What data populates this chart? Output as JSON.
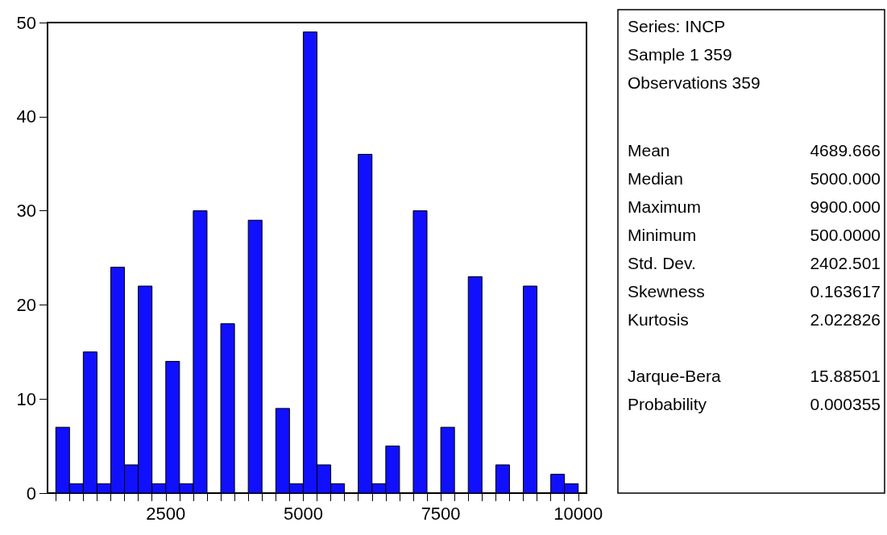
{
  "chart_data": {
    "type": "histogram",
    "bins": [
      500,
      750,
      1000,
      1250,
      1500,
      1750,
      2000,
      2250,
      2500,
      2750,
      3000,
      3250,
      3500,
      3750,
      4000,
      4250,
      4500,
      4750,
      5000,
      5250,
      5500,
      5750,
      6000,
      6250,
      6500,
      6750,
      7000,
      7250,
      7500,
      7750,
      8000,
      8250,
      8500,
      8750,
      9000,
      9250,
      9500,
      9750,
      10000
    ],
    "values": [
      7,
      1,
      15,
      1,
      24,
      3,
      22,
      1,
      14,
      1,
      30,
      0,
      18,
      0,
      29,
      0,
      9,
      1,
      49,
      3,
      1,
      0,
      36,
      1,
      5,
      0,
      30,
      0,
      7,
      0,
      23,
      0,
      3,
      0,
      22,
      0,
      2,
      1
    ],
    "color": "#1010ff",
    "xlim": [
      350,
      10150
    ],
    "xticks": [
      {
        "value": 500,
        "label": null
      },
      {
        "value": 750,
        "label": null
      },
      {
        "value": 1000,
        "label": null
      },
      {
        "value": 1250,
        "label": null
      },
      {
        "value": 1500,
        "label": null
      },
      {
        "value": 1750,
        "label": null
      },
      {
        "value": 2000,
        "label": null
      },
      {
        "value": 2250,
        "label": null
      },
      2500,
      {
        "value": 2750,
        "label": null
      },
      {
        "value": 3000,
        "label": null
      },
      {
        "value": 3250,
        "label": null
      },
      {
        "value": 3500,
        "label": null
      },
      {
        "value": 3750,
        "label": null
      },
      {
        "value": 4000,
        "label": null
      },
      {
        "value": 4250,
        "label": null
      },
      {
        "value": 4500,
        "label": null
      },
      {
        "value": 4750,
        "label": null
      },
      5000,
      {
        "value": 5250,
        "label": null
      },
      {
        "value": 5500,
        "label": null
      },
      {
        "value": 5750,
        "label": null
      },
      {
        "value": 6000,
        "label": null
      },
      {
        "value": 6250,
        "label": null
      },
      {
        "value": 6500,
        "label": null
      },
      {
        "value": 6750,
        "label": null
      },
      {
        "value": 7000,
        "label": null
      },
      {
        "value": 7250,
        "label": null
      },
      7500,
      {
        "value": 7750,
        "label": null
      },
      {
        "value": 8000,
        "label": null
      },
      {
        "value": 8250,
        "label": null
      },
      {
        "value": 8500,
        "label": null
      },
      {
        "value": 8750,
        "label": null
      },
      {
        "value": 9000,
        "label": null
      },
      {
        "value": 9250,
        "label": null
      },
      {
        "value": 9500,
        "label": null
      },
      {
        "value": 9750,
        "label": null
      },
      10000
    ],
    "ylim": [
      0,
      50
    ],
    "yticks": [
      0,
      10,
      20,
      30,
      40,
      50
    ],
    "grid": false,
    "annotations": [
      "Series: INCP",
      "Sample 1 359",
      "Observations 359",
      "Mean 4689.666",
      "Median 5000.000",
      "Maximum 9900.000",
      "Minimum 500.0000",
      "Std. Dev. 2402.501",
      "Skewness 0.163617",
      "Kurtosis 2.022826",
      "Jarque-Bera 15.88501",
      "Probability 0.000355"
    ]
  }
}
